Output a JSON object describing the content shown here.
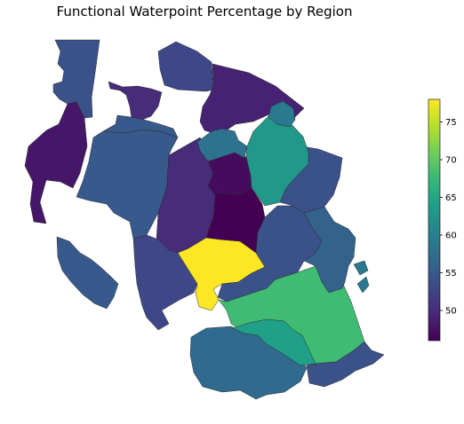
{
  "title": "Functional Waterpoint Percentage by Region",
  "colorbar": {
    "colormap": "viridis",
    "min": 46,
    "max": 78,
    "ticks": [
      50,
      55,
      60,
      65,
      70,
      75
    ],
    "stops": [
      "#440154",
      "#482878",
      "#3e4989",
      "#31688e",
      "#26828e",
      "#1f9e89",
      "#35b779",
      "#6ece58",
      "#b5de2b",
      "#fde725"
    ]
  },
  "chart_data": {
    "type": "choropleth",
    "title": "Functional Waterpoint Percentage by Region",
    "value_range": [
      46,
      78
    ],
    "colorbar_ticks": [
      50,
      55,
      60,
      65,
      70,
      75
    ],
    "regions": [
      {
        "value": 54
      },
      {
        "value": 50
      },
      {
        "value": 53
      },
      {
        "value": 48
      },
      {
        "value": 55
      },
      {
        "value": 55
      },
      {
        "value": 50
      },
      {
        "value": 55
      },
      {
        "value": 53
      },
      {
        "value": 49
      },
      {
        "value": 78
      },
      {
        "value": 47
      },
      {
        "value": 46
      },
      {
        "value": 54
      },
      {
        "value": 54
      },
      {
        "value": 68
      },
      {
        "value": 58
      },
      {
        "value": 63
      },
      {
        "value": 59
      },
      {
        "value": 56
      },
      {
        "value": 59
      },
      {
        "value": 57
      },
      {
        "value": 54
      },
      {
        "value": 64
      },
      {
        "value": 59
      }
    ]
  }
}
